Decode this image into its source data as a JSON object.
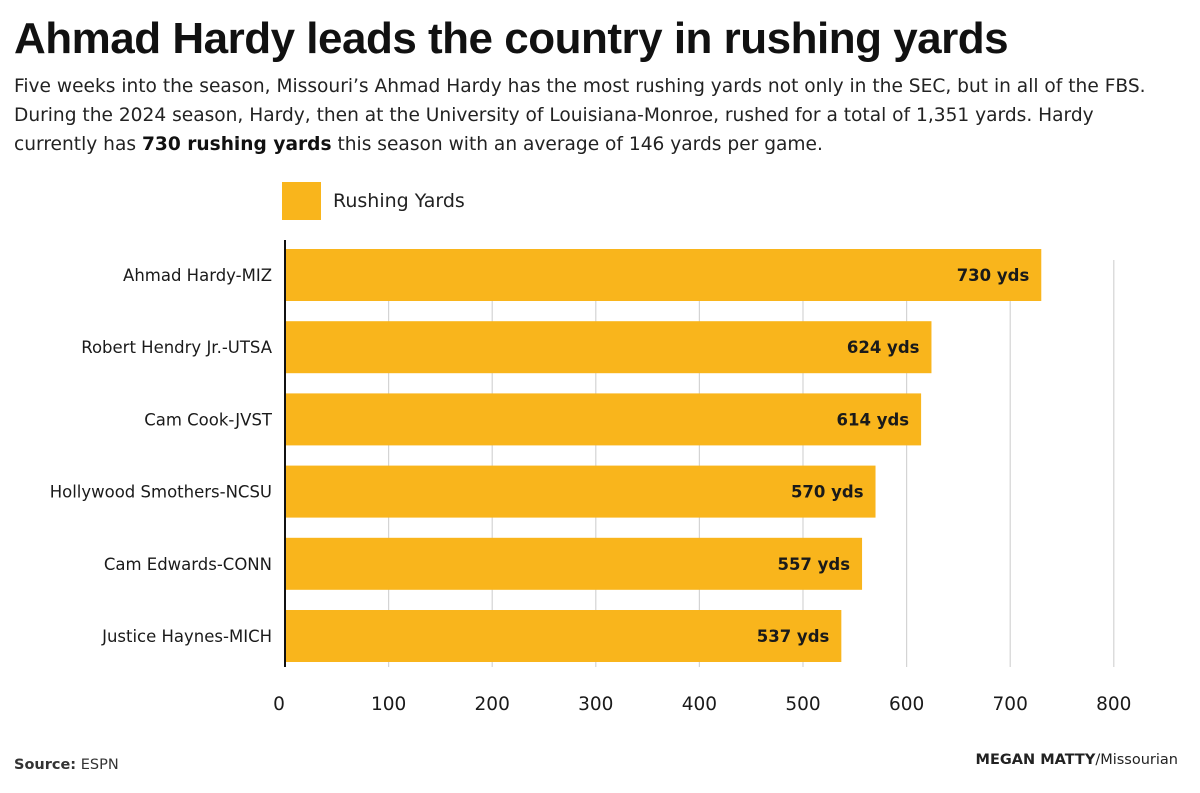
{
  "title": "Ahmad Hardy leads the country in rushing yards",
  "subtitle": {
    "before": "Five weeks into the season, Missouri’s Ahmad Hardy has the most rushing yards not only in the SEC, but in all of the FBS. During the 2024 season, Hardy, then at the University of Louisiana-Monroe, rushed for a total of 1,351 yards. Hardy currently has ",
    "bold": "730 rushing yards",
    "after": " this season with an average of 146 yards per game."
  },
  "footer": {
    "source_label": "Source:",
    "source_value": "ESPN",
    "credit_name": "MEGAN MATTY",
    "credit_org": "/Missourian"
  },
  "colors": {
    "bar": "#F9B51C",
    "grid": "#d4d4d4",
    "axis": "#111111",
    "text": "#1a1a1a"
  },
  "chart_data": {
    "type": "bar",
    "orientation": "horizontal",
    "categories": [
      "Ahmad Hardy-MIZ",
      "Robert Hendry Jr.-UTSA",
      "Cam Cook-JVST",
      "Hollywood Smothers-NCSU",
      "Cam Edwards-CONN",
      "Justice Haynes-MICH"
    ],
    "series": [
      {
        "name": "Rushing Yards",
        "values": [
          730,
          624,
          614,
          570,
          557,
          537
        ]
      }
    ],
    "data_labels": [
      "730 yds",
      "624 yds",
      "614 yds",
      "570 yds",
      "557 yds",
      "537 yds"
    ],
    "xlim": [
      0,
      800
    ],
    "xticks": [
      0,
      100,
      200,
      300,
      400,
      500,
      600,
      700,
      800
    ],
    "grid": true,
    "legend_position": "top-left"
  }
}
